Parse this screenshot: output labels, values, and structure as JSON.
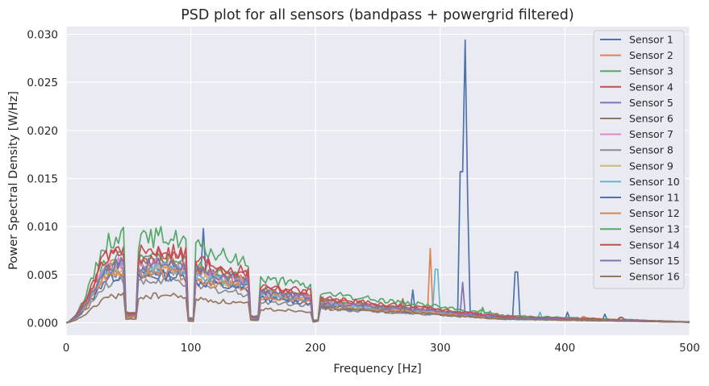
{
  "chart_data": {
    "type": "line",
    "title": "PSD plot for all sensors (bandpass + powergrid filtered)",
    "xlabel": "Frequency [Hz]",
    "ylabel": "Power Spectral Density [W/Hz]",
    "xlim": [
      0,
      500
    ],
    "ylim": [
      -0.0013,
      0.0308
    ],
    "x_ticks": [
      0,
      100,
      200,
      300,
      400,
      500
    ],
    "x_tick_labels": [
      "0",
      "100",
      "200",
      "300",
      "400",
      "500"
    ],
    "y_ticks": [
      0.0,
      0.005,
      0.01,
      0.015,
      0.02,
      0.025,
      0.03
    ],
    "y_tick_labels": [
      "0.000",
      "0.005",
      "0.010",
      "0.015",
      "0.020",
      "0.025",
      "0.030"
    ],
    "grid": true,
    "legend_position": "top-right",
    "colors": {
      "background": "#EAEAF2",
      "grid": "#FFFFFF",
      "text": "#262626"
    },
    "series": [
      {
        "name": "Sensor 1",
        "color": "#4C72B0",
        "base": 0.006,
        "peaks": [
          [
            320,
            0.0294,
            2.2
          ],
          [
            317,
            0.0245,
            1.5
          ],
          [
            361,
            0.0078,
            1.6
          ],
          [
            110,
            0.0098,
            1.3
          ],
          [
            402,
            0.0011,
            1.5
          ],
          [
            432,
            0.0009,
            1.5
          ]
        ]
      },
      {
        "name": "Sensor 2",
        "color": "#DD8452",
        "base": 0.0068,
        "peaks": [
          [
            292,
            0.0077,
            1.6
          ],
          [
            330,
            0.0012,
            2
          ]
        ]
      },
      {
        "name": "Sensor 3",
        "color": "#55A868",
        "base": 0.0071,
        "peaks": [
          [
            334,
            0.0016,
            2
          ]
        ]
      },
      {
        "name": "Sensor 4",
        "color": "#C44E52",
        "base": 0.0075,
        "peaks": [
          [
            345,
            0.0012,
            2
          ]
        ]
      },
      {
        "name": "Sensor 5",
        "color": "#8172B3",
        "base": 0.0057,
        "peaks": [
          [
            318,
            0.0042,
            1.6
          ],
          [
            340,
            0.0012,
            2
          ]
        ]
      },
      {
        "name": "Sensor 6",
        "color": "#937860",
        "base": 0.0066,
        "peaks": [
          [
            445,
            0.0007,
            2
          ]
        ]
      },
      {
        "name": "Sensor 7",
        "color": "#DA8BC3",
        "base": 0.0064,
        "peaks": [
          [
            310,
            0.0011,
            2
          ]
        ]
      },
      {
        "name": "Sensor 8",
        "color": "#8C8C8C",
        "base": 0.0046,
        "peaks": [
          [
            300,
            0.001,
            2
          ]
        ]
      },
      {
        "name": "Sensor 9",
        "color": "#CCB974",
        "base": 0.0058,
        "peaks": [
          [
            335,
            0.001,
            2
          ]
        ]
      },
      {
        "name": "Sensor 10",
        "color": "#64B5CD",
        "base": 0.006,
        "peaks": [
          [
            297,
            0.0082,
            1.6
          ],
          [
            380,
            0.0011,
            2
          ]
        ]
      },
      {
        "name": "Sensor 11",
        "color": "#4C72B0",
        "base": 0.0052,
        "peaks": [
          [
            278,
            0.0034,
            1.6
          ]
        ]
      },
      {
        "name": "Sensor 12",
        "color": "#DD8452",
        "base": 0.0055,
        "peaks": [
          [
            415,
            0.0008,
            2
          ]
        ]
      },
      {
        "name": "Sensor 13",
        "color": "#55A868",
        "base": 0.0095,
        "peaks": [
          [
            75,
            0.0102,
            1.4
          ],
          [
            333,
            0.0017,
            2
          ]
        ]
      },
      {
        "name": "Sensor 14",
        "color": "#C44E52",
        "base": 0.008,
        "peaks": [
          [
            445,
            0.0007,
            2
          ]
        ]
      },
      {
        "name": "Sensor 15",
        "color": "#8172B3",
        "base": 0.0065,
        "peaks": [
          [
            370,
            0.0006,
            2
          ]
        ]
      },
      {
        "name": "Sensor 16",
        "color": "#937860",
        "base": 0.003,
        "peaks": [
          [
            205,
            0.0034,
            2
          ],
          [
            270,
            0.0025,
            2
          ]
        ]
      }
    ]
  }
}
